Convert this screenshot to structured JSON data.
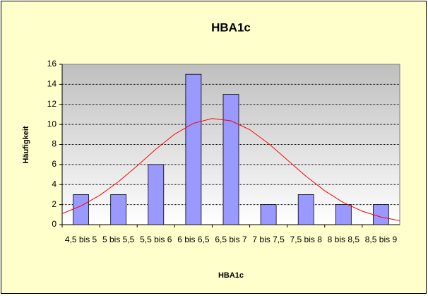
{
  "chart_data": {
    "type": "bar",
    "title": "HBA1c",
    "x_label": "HBA1c",
    "y_label": "Häufigkeit",
    "categories": [
      "4,5 bis 5",
      "5 bis 5,5",
      "5,5 bis 6",
      "6 bis 6,5",
      "6,5 bis 7",
      "7 bis 7,5",
      "7,5 bis 8",
      "8 bis 8,5",
      "8,5 bis 9"
    ],
    "values": [
      3,
      3,
      6,
      15,
      13,
      2,
      3,
      2,
      2
    ],
    "color": "#9999ff",
    "ylim": [
      0,
      16
    ],
    "yticks": [
      0,
      2,
      4,
      6,
      8,
      10,
      12,
      14,
      16
    ],
    "grid": true,
    "curve": {
      "color": "#ff0000",
      "x": [
        -0.5,
        0,
        0.5,
        1,
        1.5,
        2,
        2.5,
        3,
        3.5,
        4,
        4.5,
        5,
        5.5,
        6,
        6.5,
        7,
        7.5,
        8,
        8.5
      ],
      "values": [
        1.1,
        1.86,
        2.92,
        4.28,
        5.87,
        7.53,
        9.03,
        10.11,
        10.59,
        10.36,
        9.48,
        8.1,
        6.47,
        4.83,
        3.38,
        2.2,
        1.34,
        0.76,
        0.4
      ]
    }
  }
}
